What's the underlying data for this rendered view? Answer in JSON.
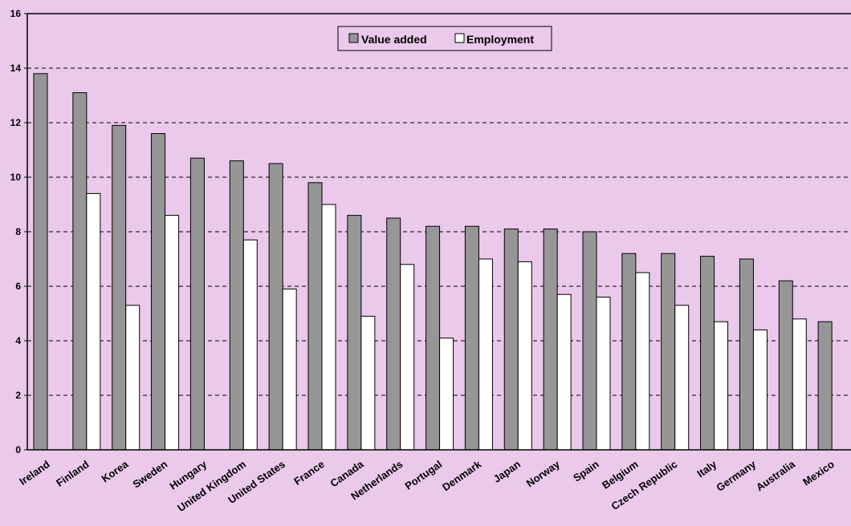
{
  "chart_data": {
    "type": "bar",
    "categories": [
      "Ireland",
      "Finland",
      "Korea",
      "Sweden",
      "Hungary",
      "United Kingdom",
      "United States",
      "France",
      "Canada",
      "Netherlands",
      "Portugal",
      "Denmark",
      "Japan",
      "Norway",
      "Spain",
      "Belgium",
      "Czech Republic",
      "Italy",
      "Germany",
      "Australia",
      "Mexico"
    ],
    "series": [
      {
        "name": "Value added",
        "color": "#969696",
        "values": [
          13.8,
          13.1,
          11.9,
          11.6,
          10.7,
          10.6,
          10.5,
          9.8,
          8.6,
          8.5,
          8.2,
          8.2,
          8.1,
          8.1,
          8.0,
          7.2,
          7.2,
          7.1,
          7.0,
          6.2,
          4.7
        ]
      },
      {
        "name": "Employment",
        "color": "#ffffff",
        "values": [
          null,
          9.4,
          5.3,
          8.6,
          null,
          7.7,
          5.9,
          9.0,
          4.9,
          6.8,
          4.1,
          7.0,
          6.9,
          5.7,
          5.6,
          6.5,
          5.3,
          4.7,
          4.4,
          4.8,
          null
        ]
      }
    ],
    "ylim": [
      0,
      16
    ],
    "yticks": [
      "0",
      "2",
      "4",
      "6",
      "8",
      "10",
      "12",
      "14",
      "16"
    ],
    "grid": "dashed horizontal",
    "legend_position": "top-center",
    "background": "#ebc9eb"
  }
}
